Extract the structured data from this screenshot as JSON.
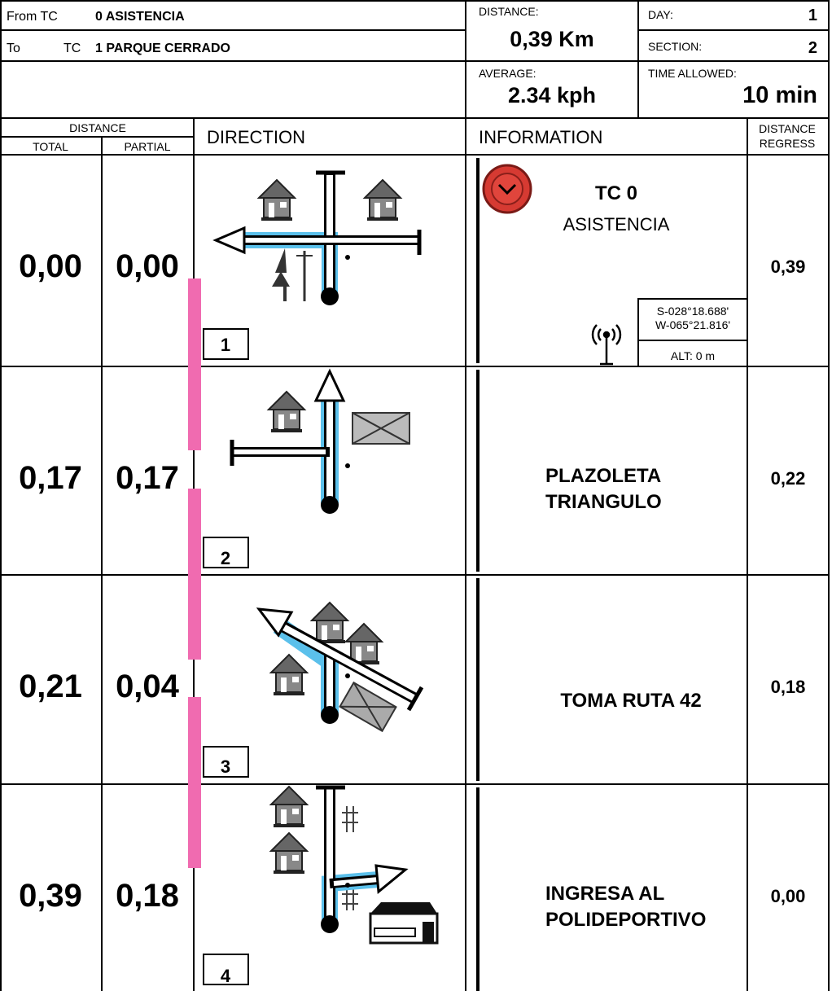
{
  "header": {
    "from_label": "From TC",
    "from_value": "0 ASISTENCIA",
    "to_label": "To",
    "to_tc": "TC",
    "to_value": "1 PARQUE CERRADO",
    "distance_label": "DISTANCE:",
    "distance_value": "0,39 Km",
    "day_label": "DAY:",
    "day_value": "1",
    "section_label": "SECTION:",
    "section_value": "2",
    "average_label": "AVERAGE:",
    "average_value": "2.34 kph",
    "time_label": "TIME ALLOWED:",
    "time_value": "10 min"
  },
  "columns": {
    "distance": "DISTANCE",
    "total": "TOTAL",
    "partial": "PARTIAL",
    "direction": "DIRECTION",
    "information": "INFORMATION",
    "regress": [
      "DISTANCE",
      "REGRESS"
    ]
  },
  "rows": [
    {
      "total": "0,00",
      "partial": "0,00",
      "number": "1",
      "info": [
        "TC 0",
        "ASISTENCIA"
      ],
      "coords": [
        "S-028°18.688'",
        "W-065°21.816'"
      ],
      "alt": "ALT: 0  m",
      "regress": "0,39"
    },
    {
      "total": "0,17",
      "partial": "0,17",
      "number": "2",
      "info": [
        "PLAZOLETA",
        "TRIANGULO"
      ],
      "regress": "0,22"
    },
    {
      "total": "0,21",
      "partial": "0,04",
      "number": "3",
      "info": [
        "TOMA RUTA 42"
      ],
      "regress": "0,18"
    },
    {
      "total": "0,39",
      "partial": "0,18",
      "number": "4",
      "info": [
        "INGRESA AL",
        "POLIDEPORTIVO"
      ],
      "regress": "0,00"
    }
  ]
}
